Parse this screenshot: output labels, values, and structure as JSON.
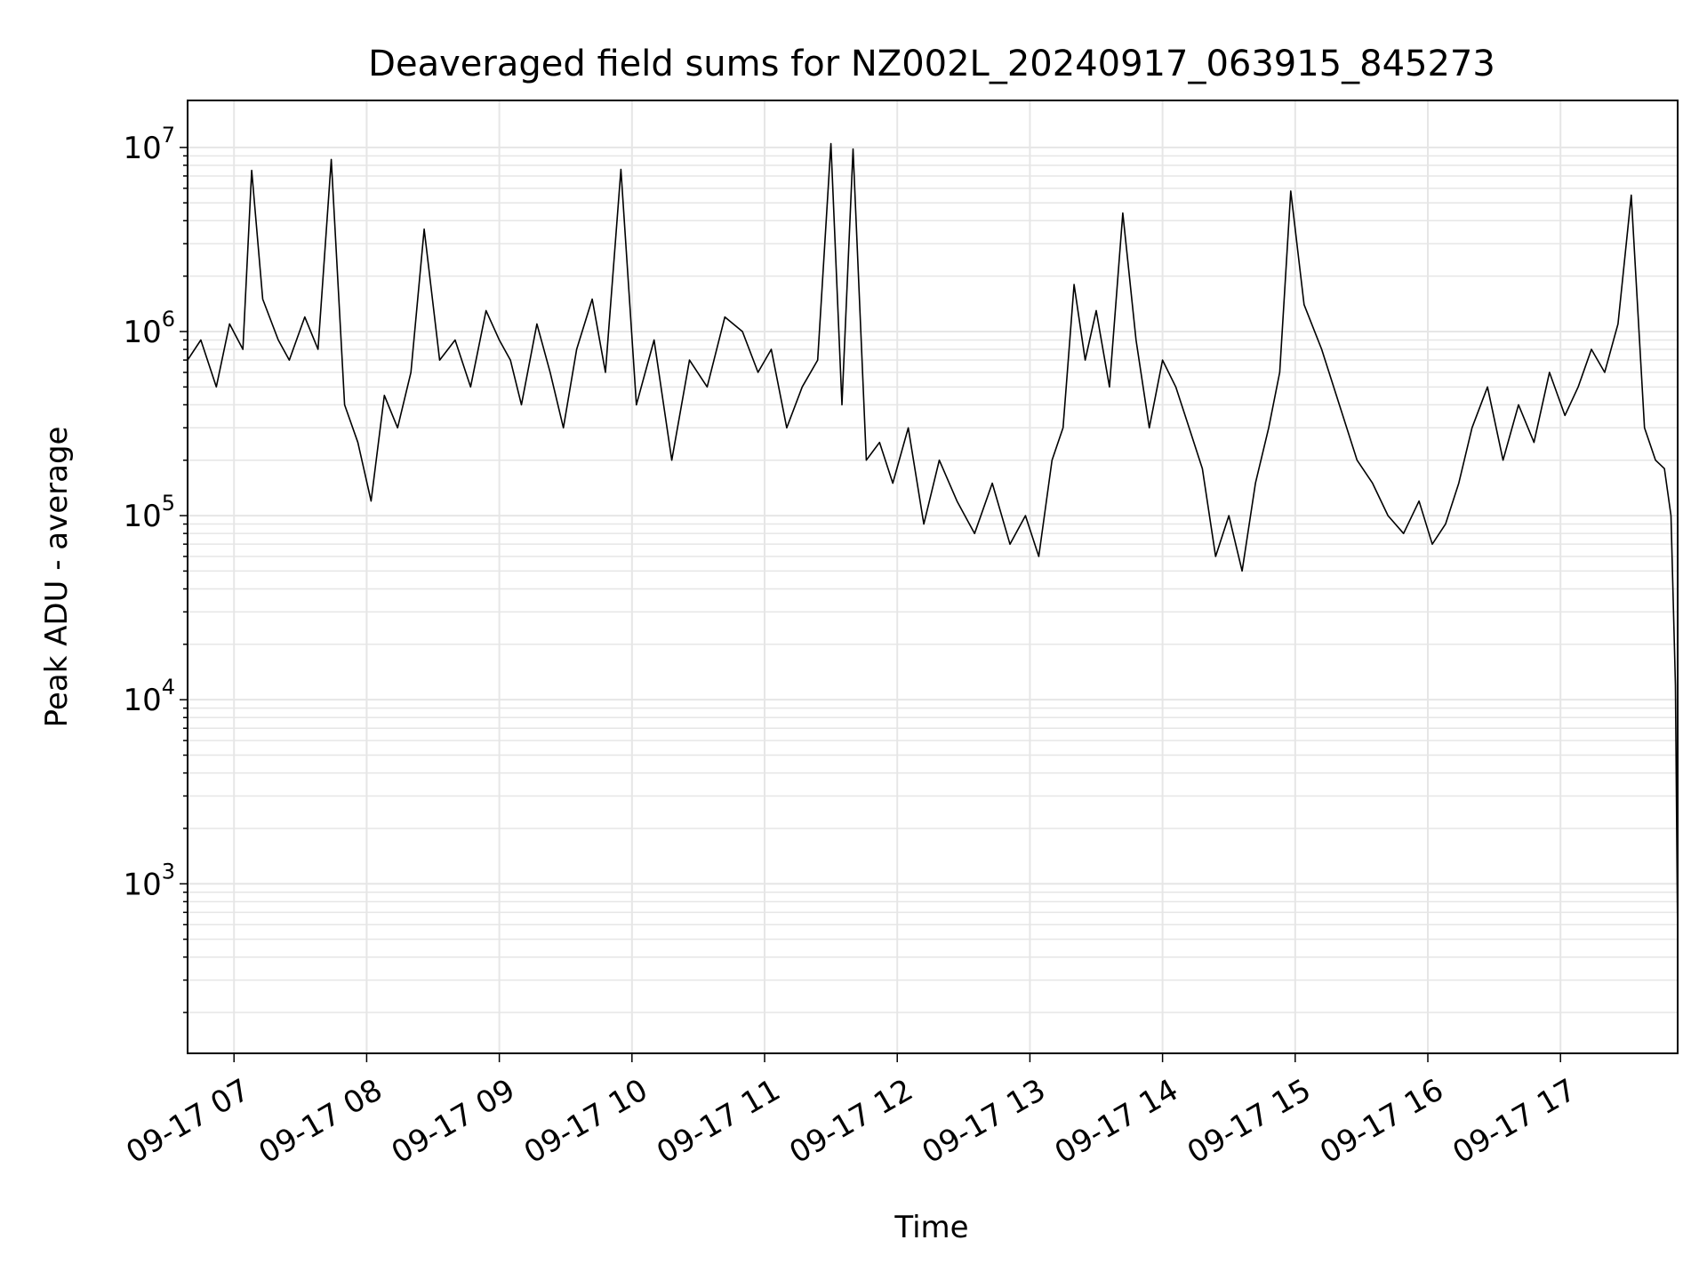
{
  "chart_data": {
    "type": "line",
    "title": "Deaveraged field sums for NZ002L_20240917_063915_845273",
    "xlabel": "Time",
    "ylabel": "Peak ADU - average",
    "y_scale": "log",
    "ylim": [
      120,
      18000000
    ],
    "xlim": [
      "2024-09-17 06:39",
      "2024-09-17 17:53"
    ],
    "grid": true,
    "line_color": "#000000",
    "x_ticks": [
      {
        "value": "2024-09-17 07:00",
        "label": "09-17 07"
      },
      {
        "value": "2024-09-17 08:00",
        "label": "09-17 08"
      },
      {
        "value": "2024-09-17 09:00",
        "label": "09-17 09"
      },
      {
        "value": "2024-09-17 10:00",
        "label": "09-17 10"
      },
      {
        "value": "2024-09-17 11:00",
        "label": "09-17 11"
      },
      {
        "value": "2024-09-17 12:00",
        "label": "09-17 12"
      },
      {
        "value": "2024-09-17 13:00",
        "label": "09-17 13"
      },
      {
        "value": "2024-09-17 14:00",
        "label": "09-17 14"
      },
      {
        "value": "2024-09-17 15:00",
        "label": "09-17 15"
      },
      {
        "value": "2024-09-17 16:00",
        "label": "09-17 16"
      },
      {
        "value": "2024-09-17 17:00",
        "label": "09-17 17"
      }
    ],
    "y_ticks": [
      {
        "value": 1000,
        "base": "10",
        "exp": "3"
      },
      {
        "value": 10000,
        "base": "10",
        "exp": "4"
      },
      {
        "value": 100000,
        "base": "10",
        "exp": "5"
      },
      {
        "value": 1000000,
        "base": "10",
        "exp": "6"
      },
      {
        "value": 10000000,
        "base": "10",
        "exp": "7"
      }
    ],
    "series": [
      {
        "x": [
          "2024-09-17 06:39",
          "2024-09-17 06:45",
          "2024-09-17 06:52",
          "2024-09-17 06:58",
          "2024-09-17 07:04",
          "2024-09-17 07:08",
          "2024-09-17 07:13",
          "2024-09-17 07:20",
          "2024-09-17 07:25",
          "2024-09-17 07:32",
          "2024-09-17 07:38",
          "2024-09-17 07:44",
          "2024-09-17 07:50",
          "2024-09-17 07:56",
          "2024-09-17 08:02",
          "2024-09-17 08:08",
          "2024-09-17 08:14",
          "2024-09-17 08:20",
          "2024-09-17 08:26",
          "2024-09-17 08:33",
          "2024-09-17 08:40",
          "2024-09-17 08:47",
          "2024-09-17 08:54",
          "2024-09-17 09:00",
          "2024-09-17 09:05",
          "2024-09-17 09:10",
          "2024-09-17 09:17",
          "2024-09-17 09:23",
          "2024-09-17 09:29",
          "2024-09-17 09:35",
          "2024-09-17 09:42",
          "2024-09-17 09:48",
          "2024-09-17 09:55",
          "2024-09-17 10:02",
          "2024-09-17 10:10",
          "2024-09-17 10:18",
          "2024-09-17 10:26",
          "2024-09-17 10:34",
          "2024-09-17 10:42",
          "2024-09-17 10:50",
          "2024-09-17 10:57",
          "2024-09-17 11:03",
          "2024-09-17 11:10",
          "2024-09-17 11:17",
          "2024-09-17 11:24",
          "2024-09-17 11:30",
          "2024-09-17 11:35",
          "2024-09-17 11:40",
          "2024-09-17 11:46",
          "2024-09-17 11:52",
          "2024-09-17 11:58",
          "2024-09-17 12:05",
          "2024-09-17 12:12",
          "2024-09-17 12:19",
          "2024-09-17 12:27",
          "2024-09-17 12:35",
          "2024-09-17 12:43",
          "2024-09-17 12:51",
          "2024-09-17 12:58",
          "2024-09-17 13:04",
          "2024-09-17 13:10",
          "2024-09-17 13:15",
          "2024-09-17 13:20",
          "2024-09-17 13:25",
          "2024-09-17 13:30",
          "2024-09-17 13:36",
          "2024-09-17 13:42",
          "2024-09-17 13:48",
          "2024-09-17 13:54",
          "2024-09-17 14:00",
          "2024-09-17 14:06",
          "2024-09-17 14:12",
          "2024-09-17 14:18",
          "2024-09-17 14:24",
          "2024-09-17 14:30",
          "2024-09-17 14:36",
          "2024-09-17 14:42",
          "2024-09-17 14:48",
          "2024-09-17 14:53",
          "2024-09-17 14:58",
          "2024-09-17 15:04",
          "2024-09-17 15:12",
          "2024-09-17 15:20",
          "2024-09-17 15:28",
          "2024-09-17 15:35",
          "2024-09-17 15:42",
          "2024-09-17 15:49",
          "2024-09-17 15:56",
          "2024-09-17 16:02",
          "2024-09-17 16:08",
          "2024-09-17 16:14",
          "2024-09-17 16:20",
          "2024-09-17 16:27",
          "2024-09-17 16:34",
          "2024-09-17 16:41",
          "2024-09-17 16:48",
          "2024-09-17 16:55",
          "2024-09-17 17:02",
          "2024-09-17 17:08",
          "2024-09-17 17:14",
          "2024-09-17 17:20",
          "2024-09-17 17:26",
          "2024-09-17 17:32",
          "2024-09-17 17:38",
          "2024-09-17 17:43",
          "2024-09-17 17:47",
          "2024-09-17 17:50",
          "2024-09-17 17:52",
          "2024-09-17 17:53"
        ],
        "values": [
          700000,
          900000,
          500000,
          1100000,
          800000,
          7500000,
          1500000,
          900000,
          700000,
          1200000,
          800000,
          8600000,
          400000,
          250000,
          120000,
          450000,
          300000,
          600000,
          3600000,
          700000,
          900000,
          500000,
          1300000,
          900000,
          700000,
          400000,
          1100000,
          600000,
          300000,
          800000,
          1500000,
          600000,
          7600000,
          400000,
          900000,
          200000,
          700000,
          500000,
          1200000,
          1000000,
          600000,
          800000,
          300000,
          500000,
          700000,
          10500000,
          400000,
          9800000,
          200000,
          250000,
          150000,
          300000,
          90000,
          200000,
          120000,
          80000,
          150000,
          70000,
          100000,
          60000,
          200000,
          300000,
          1800000,
          700000,
          1300000,
          500000,
          4400000,
          900000,
          300000,
          700000,
          500000,
          300000,
          180000,
          60000,
          100000,
          50000,
          150000,
          300000,
          600000,
          5800000,
          1400000,
          800000,
          400000,
          200000,
          150000,
          100000,
          80000,
          120000,
          70000,
          90000,
          150000,
          300000,
          500000,
          200000,
          400000,
          250000,
          600000,
          350000,
          500000,
          800000,
          600000,
          1100000,
          5500000,
          300000,
          200000,
          180000,
          100000,
          12000,
          500
        ]
      }
    ]
  }
}
